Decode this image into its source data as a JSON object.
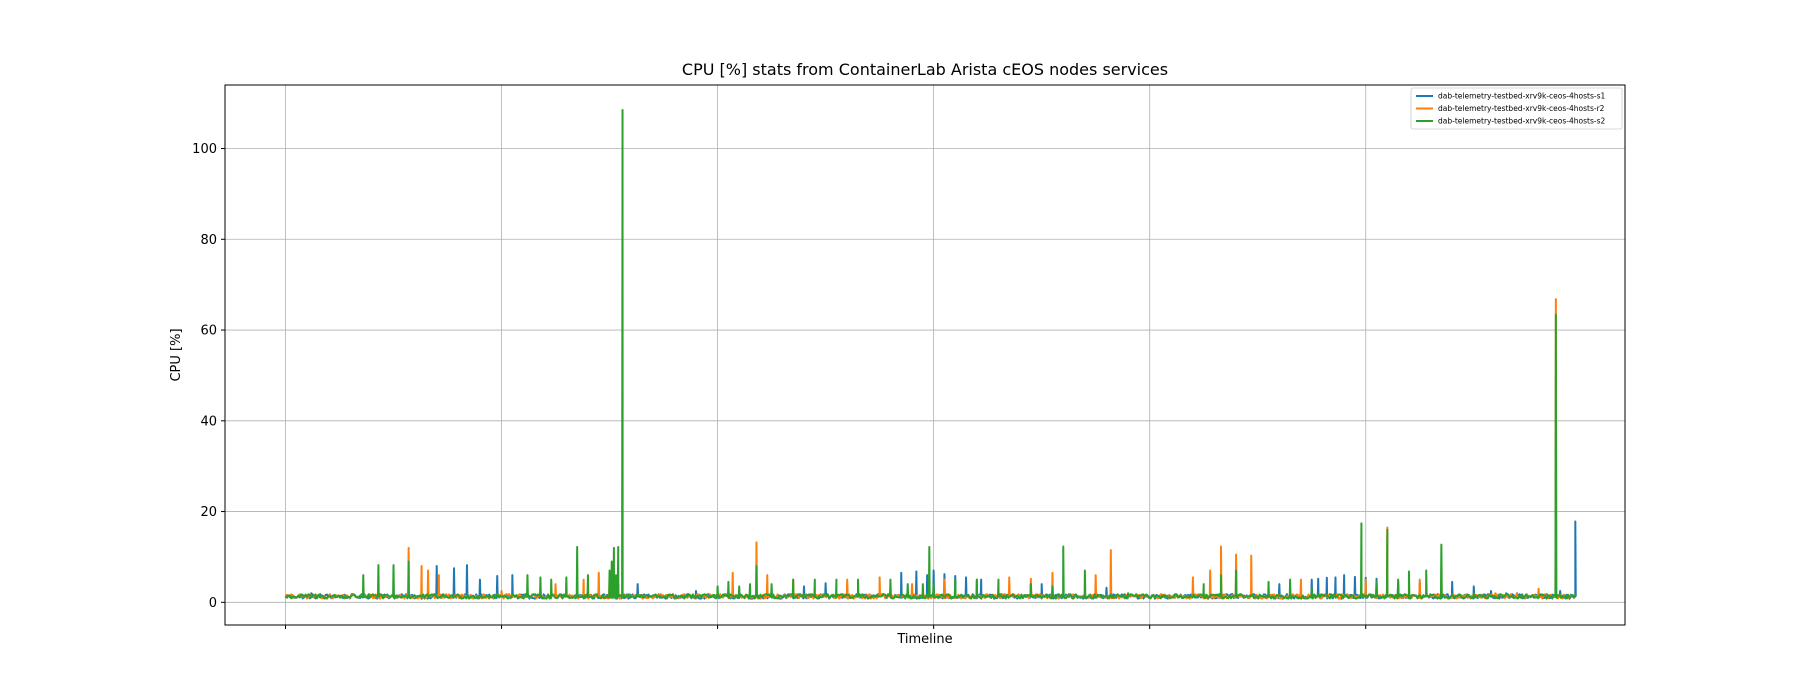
{
  "chart_data": {
    "type": "line",
    "title": "CPU [%] stats from ContainerLab Arista cEOS nodes services",
    "xlabel": "Timeline",
    "ylabel": "CPU [%]",
    "ylim": [
      -5,
      114
    ],
    "yticks": [
      0,
      20,
      40,
      60,
      80,
      100
    ],
    "x_range": [
      -0.28,
      6.2
    ],
    "x_gridlines": [
      0,
      1,
      2,
      3,
      4,
      5
    ],
    "grid": true,
    "legend_position": "top-right",
    "baseline": 1.3,
    "series": [
      {
        "name": "dab-telemetry-testbed-xrv9k-ceos-4hosts-s1",
        "color": "#1f77b4",
        "spikes": [
          [
            0.12,
            2.0
          ],
          [
            0.16,
            1.8
          ],
          [
            0.7,
            8.0
          ],
          [
            0.78,
            7.5
          ],
          [
            0.84,
            8.2
          ],
          [
            0.9,
            5.0
          ],
          [
            0.98,
            5.8
          ],
          [
            1.05,
            6.0
          ],
          [
            1.54,
            4.0
          ],
          [
            1.63,
            4.0
          ],
          [
            1.9,
            2.5
          ],
          [
            2.25,
            3.0
          ],
          [
            2.4,
            3.5
          ],
          [
            2.5,
            4.2
          ],
          [
            2.85,
            6.5
          ],
          [
            2.92,
            6.8
          ],
          [
            2.97,
            6.0
          ],
          [
            3.0,
            7.0
          ],
          [
            3.05,
            6.2
          ],
          [
            3.1,
            5.8
          ],
          [
            3.15,
            5.5
          ],
          [
            3.22,
            5.0
          ],
          [
            3.5,
            4.0
          ],
          [
            3.8,
            3.2
          ],
          [
            4.6,
            4.0
          ],
          [
            4.75,
            5.0
          ],
          [
            4.78,
            5.2
          ],
          [
            4.82,
            5.4
          ],
          [
            4.86,
            5.5
          ],
          [
            4.9,
            6.0
          ],
          [
            4.95,
            5.6
          ],
          [
            5.0,
            5.4
          ],
          [
            5.05,
            5.2
          ],
          [
            5.1,
            5.0
          ],
          [
            5.15,
            4.5
          ],
          [
            5.25,
            4.2
          ],
          [
            5.4,
            4.5
          ],
          [
            5.5,
            3.5
          ],
          [
            5.58,
            2.5
          ],
          [
            5.65,
            2.0
          ],
          [
            5.7,
            2.0
          ],
          [
            5.8,
            2.0
          ],
          [
            5.9,
            2.5
          ],
          [
            5.97,
            17.8
          ]
        ]
      },
      {
        "name": "dab-telemetry-testbed-xrv9k-ceos-4hosts-r2",
        "color": "#ff7f0e",
        "spikes": [
          [
            0.57,
            12.0
          ],
          [
            0.63,
            8.0
          ],
          [
            0.66,
            7.0
          ],
          [
            0.71,
            6.0
          ],
          [
            1.0,
            2.5
          ],
          [
            1.25,
            4.0
          ],
          [
            1.38,
            5.0
          ],
          [
            1.45,
            6.5
          ],
          [
            1.5,
            5.5
          ],
          [
            2.07,
            6.5
          ],
          [
            2.18,
            13.2
          ],
          [
            2.23,
            6.0
          ],
          [
            2.35,
            5.0
          ],
          [
            2.6,
            5.0
          ],
          [
            2.75,
            5.5
          ],
          [
            2.9,
            4.0
          ],
          [
            3.05,
            5.0
          ],
          [
            3.2,
            5.0
          ],
          [
            3.35,
            5.5
          ],
          [
            3.45,
            5.2
          ],
          [
            3.55,
            6.5
          ],
          [
            3.75,
            6.0
          ],
          [
            3.82,
            11.5
          ],
          [
            4.2,
            5.5
          ],
          [
            4.28,
            7.0
          ],
          [
            4.33,
            12.3
          ],
          [
            4.4,
            10.5
          ],
          [
            4.47,
            10.3
          ],
          [
            4.7,
            5.0
          ],
          [
            5.0,
            5.0
          ],
          [
            5.1,
            16.5
          ],
          [
            5.25,
            5.0
          ],
          [
            5.6,
            2.0
          ],
          [
            5.7,
            2.0
          ],
          [
            5.8,
            3.0
          ],
          [
            5.88,
            66.8
          ]
        ]
      },
      {
        "name": "dab-telemetry-testbed-xrv9k-ceos-4hosts-s2",
        "color": "#2ca02c",
        "spikes": [
          [
            0.36,
            6.0
          ],
          [
            0.43,
            8.2
          ],
          [
            0.5,
            8.2
          ],
          [
            0.57,
            9.0
          ],
          [
            1.12,
            6.0
          ],
          [
            1.18,
            5.5
          ],
          [
            1.23,
            5.0
          ],
          [
            1.3,
            5.5
          ],
          [
            1.35,
            12.2
          ],
          [
            1.4,
            6.0
          ],
          [
            1.5,
            7.0
          ],
          [
            1.54,
            12.2
          ],
          [
            1.52,
            12.0
          ],
          [
            1.51,
            9.0
          ],
          [
            1.53,
            6.0
          ],
          [
            1.56,
            108.5
          ],
          [
            2.0,
            3.5
          ],
          [
            2.05,
            4.5
          ],
          [
            2.1,
            3.5
          ],
          [
            2.15,
            4.0
          ],
          [
            2.18,
            8.0
          ],
          [
            2.25,
            4.0
          ],
          [
            2.35,
            5.0
          ],
          [
            2.45,
            5.0
          ],
          [
            2.55,
            5.0
          ],
          [
            2.65,
            5.0
          ],
          [
            2.8,
            5.0
          ],
          [
            2.88,
            4.0
          ],
          [
            2.95,
            4.0
          ],
          [
            2.98,
            12.2
          ],
          [
            3.0,
            4.0
          ],
          [
            3.1,
            5.0
          ],
          [
            3.2,
            5.0
          ],
          [
            3.3,
            5.0
          ],
          [
            3.45,
            4.0
          ],
          [
            3.55,
            3.5
          ],
          [
            3.6,
            12.3
          ],
          [
            3.7,
            7.0
          ],
          [
            3.9,
            2.0
          ],
          [
            4.25,
            4.0
          ],
          [
            4.33,
            6.0
          ],
          [
            4.4,
            7.0
          ],
          [
            4.55,
            4.5
          ],
          [
            4.65,
            5.0
          ],
          [
            4.75,
            3.0
          ],
          [
            4.98,
            17.4
          ],
          [
            5.05,
            4.5
          ],
          [
            5.1,
            16.0
          ],
          [
            5.15,
            5.0
          ],
          [
            5.2,
            6.8
          ],
          [
            5.28,
            7.0
          ],
          [
            5.35,
            12.7
          ],
          [
            5.5,
            2.0
          ],
          [
            5.88,
            63.4
          ]
        ]
      }
    ]
  }
}
